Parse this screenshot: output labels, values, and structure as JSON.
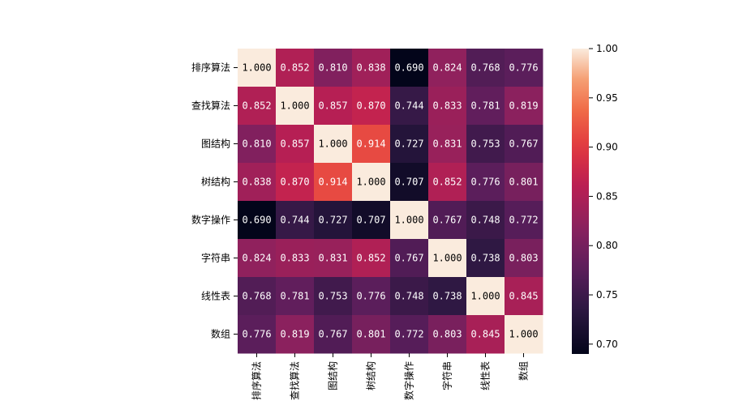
{
  "chart_data": {
    "type": "heatmap",
    "title": "",
    "xlabel": "",
    "ylabel": "",
    "categories": [
      "排序算法",
      "查找算法",
      "图结构",
      "树结构",
      "数字操作",
      "字符串",
      "线性表",
      "数组"
    ],
    "values": [
      [
        1.0,
        0.852,
        0.81,
        0.838,
        0.69,
        0.824,
        0.768,
        0.776
      ],
      [
        0.852,
        1.0,
        0.857,
        0.87,
        0.744,
        0.833,
        0.781,
        0.819
      ],
      [
        0.81,
        0.857,
        1.0,
        0.914,
        0.727,
        0.831,
        0.753,
        0.767
      ],
      [
        0.838,
        0.87,
        0.914,
        1.0,
        0.707,
        0.852,
        0.776,
        0.801
      ],
      [
        0.69,
        0.744,
        0.727,
        0.707,
        1.0,
        0.767,
        0.748,
        0.772
      ],
      [
        0.824,
        0.833,
        0.831,
        0.852,
        0.767,
        1.0,
        0.738,
        0.803
      ],
      [
        0.768,
        0.781,
        0.753,
        0.776,
        0.748,
        0.738,
        1.0,
        0.845
      ],
      [
        0.776,
        0.819,
        0.767,
        0.801,
        0.772,
        0.803,
        0.845,
        1.0
      ]
    ],
    "value_format": "3 decimals",
    "colormap": "rocket",
    "vmin": 0.69,
    "vmax": 1.0,
    "colorbar_ticks": [
      "0.70",
      "0.75",
      "0.80",
      "0.85",
      "0.90",
      "0.95",
      "1.00"
    ],
    "colorbar_placement": "right",
    "annotations_shown": true,
    "grid": false
  }
}
